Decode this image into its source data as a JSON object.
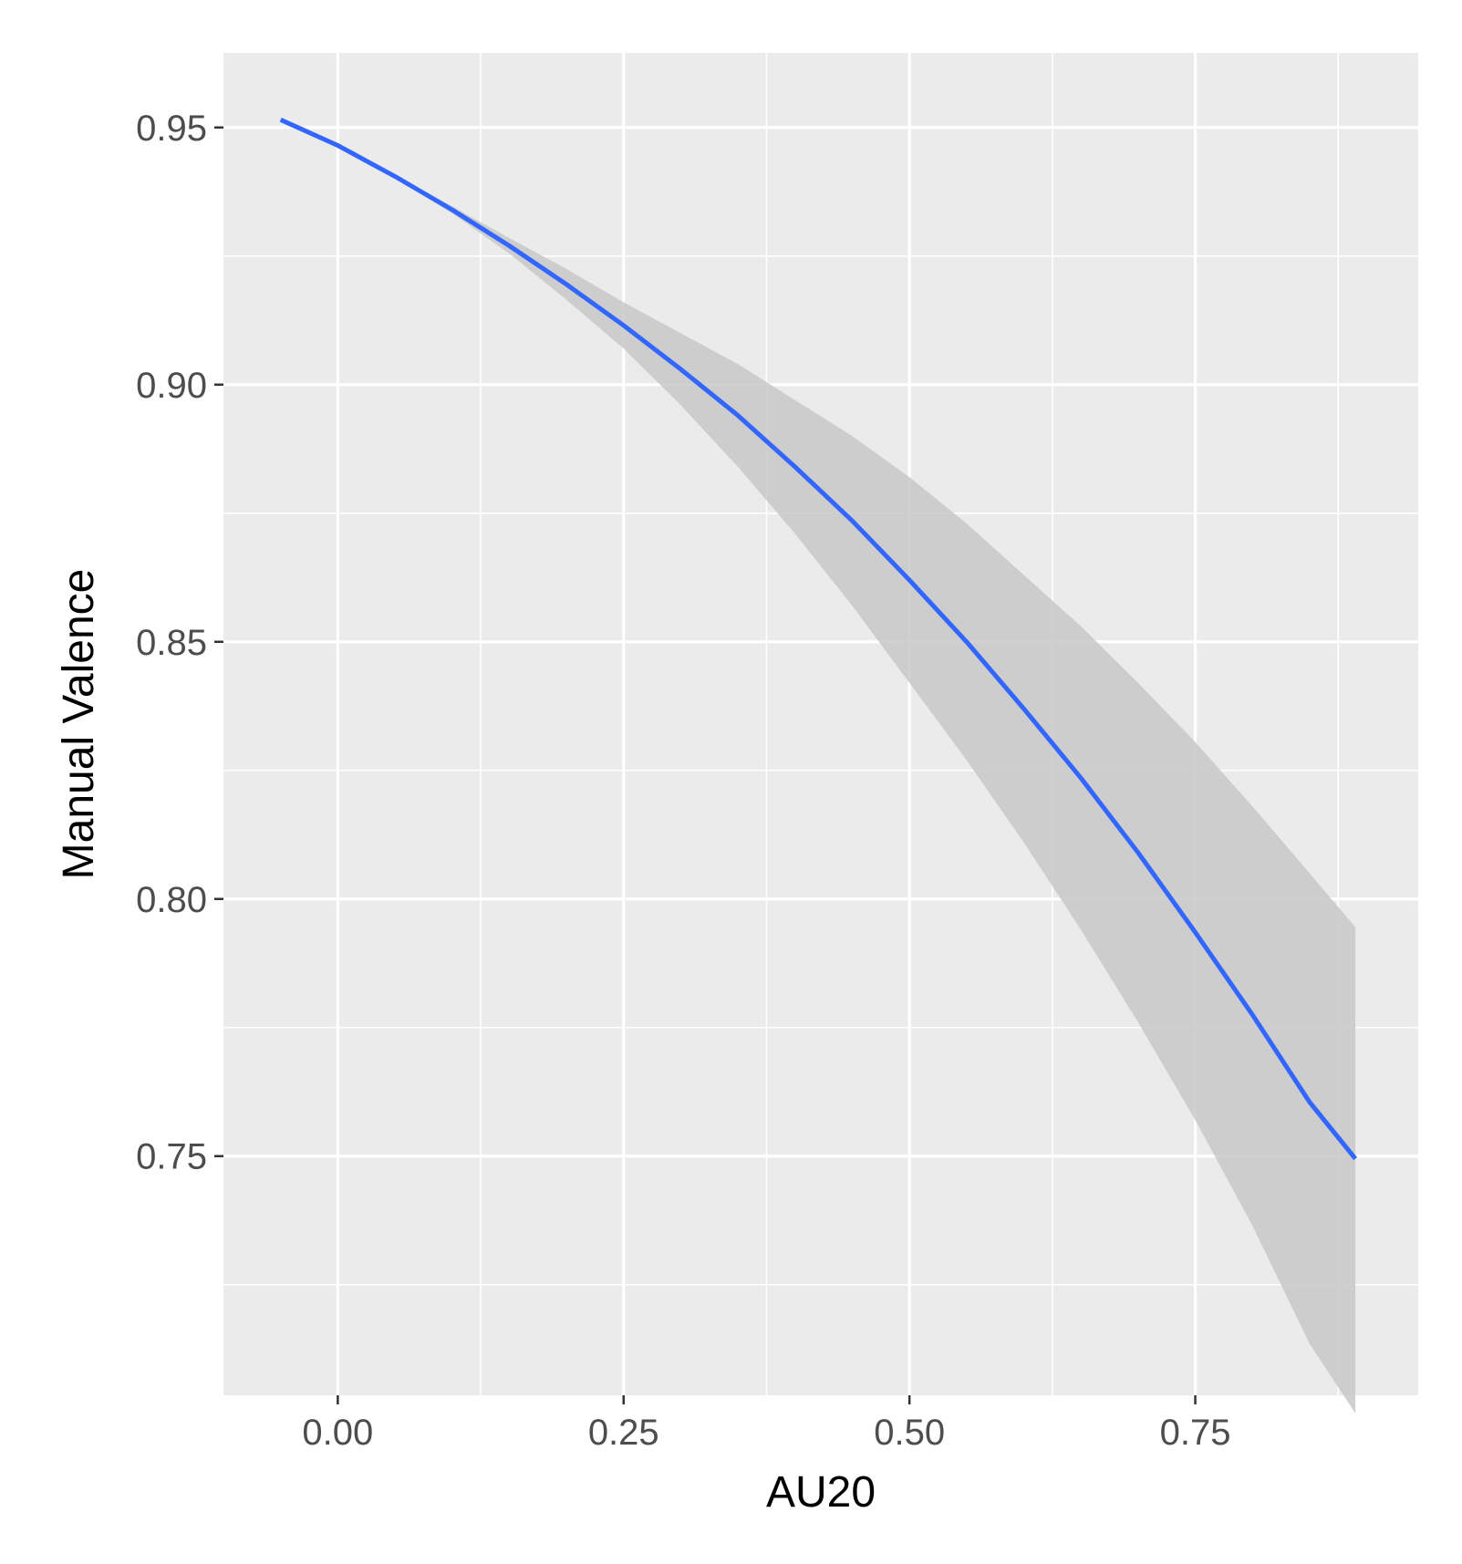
{
  "chart_data": {
    "type": "line",
    "title": "",
    "xlabel": "AU20",
    "ylabel": "Manual Valence",
    "xlim": [
      -0.1,
      0.945
    ],
    "ylim": [
      0.7035,
      0.9645
    ],
    "x_ticks": [
      0.0,
      0.25,
      0.5,
      0.75
    ],
    "x_tick_labels": [
      "0.00",
      "0.25",
      "0.50",
      "0.75"
    ],
    "y_ticks": [
      0.75,
      0.8,
      0.85,
      0.9,
      0.95
    ],
    "y_tick_labels": [
      "0.75",
      "0.80",
      "0.85",
      "0.90",
      "0.95"
    ],
    "grid": true,
    "legend": "none",
    "colors": {
      "line": "#3366ff",
      "ribbon": "#c8c8c8",
      "panel": "#ebebeb",
      "grid": "#ffffff",
      "tick_text": "#4d4d4d",
      "title_text": "#000000"
    },
    "series": [
      {
        "x": [
          -0.05,
          0.0,
          0.05,
          0.1,
          0.15,
          0.2,
          0.25,
          0.3,
          0.35,
          0.4,
          0.45,
          0.5,
          0.55,
          0.6,
          0.65,
          0.7,
          0.75,
          0.8,
          0.85,
          0.89
        ],
        "y": [
          0.9515,
          0.9465,
          0.9405,
          0.934,
          0.927,
          0.9195,
          0.9115,
          0.903,
          0.894,
          0.884,
          0.8735,
          0.862,
          0.85,
          0.837,
          0.8235,
          0.809,
          0.7935,
          0.7775,
          0.7605,
          0.7495
        ],
        "lower": [
          0.9515,
          0.9465,
          0.9402,
          0.9333,
          0.9255,
          0.9165,
          0.907,
          0.896,
          0.884,
          0.871,
          0.857,
          0.842,
          0.827,
          0.811,
          0.794,
          0.776,
          0.757,
          0.7365,
          0.7135,
          0.7
        ]
      }
    ],
    "ribbon_upper": [
      0.9515,
      0.9465,
      0.9408,
      0.9347,
      0.9285,
      0.9225,
      0.916,
      0.91,
      0.904,
      0.897,
      0.89,
      0.882,
      0.873,
      0.863,
      0.853,
      0.842,
      0.8305,
      0.818,
      0.805,
      0.7945
    ]
  }
}
